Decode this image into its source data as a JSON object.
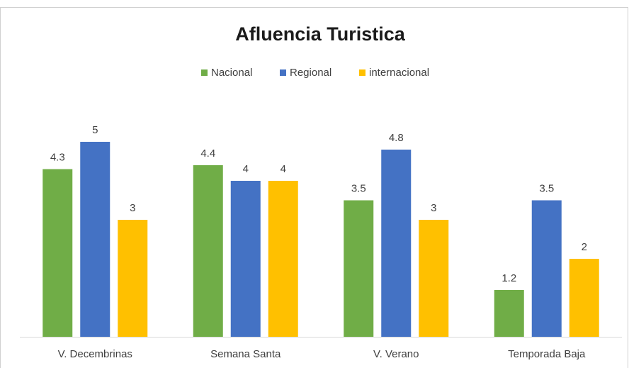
{
  "chart_data": {
    "type": "bar",
    "title": "Afluencia Turistica",
    "categories": [
      "V. Decembrinas",
      "Semana Santa",
      "V. Verano",
      "Temporada Baja"
    ],
    "series": [
      {
        "name": "Nacional",
        "color": "#70ad47",
        "values": [
          4.3,
          4.4,
          3.5,
          1.2
        ]
      },
      {
        "name": "Regional",
        "color": "#4472c4",
        "values": [
          5,
          4,
          4.8,
          3.5
        ]
      },
      {
        "name": "internacional",
        "color": "#ffc000",
        "values": [
          3,
          4,
          3,
          2
        ]
      }
    ],
    "ylim": [
      0,
      6
    ],
    "legend": "top"
  }
}
